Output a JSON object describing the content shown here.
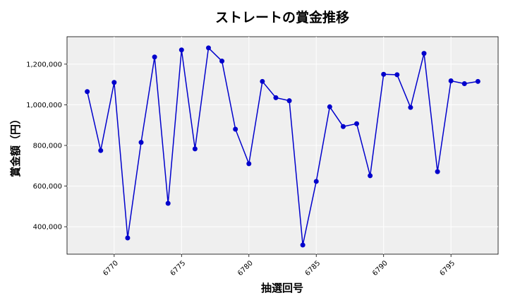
{
  "chart_data": {
    "type": "line",
    "title": "ストレートの賞金推移",
    "xlabel": "抽選回号",
    "ylabel": "賞金額（円）",
    "xlim": [
      6766.5,
      6798.5
    ],
    "ylim": [
      265000,
      1335000
    ],
    "x_ticks": [
      6770,
      6775,
      6780,
      6785,
      6790,
      6795
    ],
    "y_ticks": [
      400000,
      600000,
      800000,
      1000000,
      1200000
    ],
    "y_tick_labels": [
      "400,000",
      "600,000",
      "800,000",
      "1,000,000",
      "1,200,000"
    ],
    "grid": true,
    "colors": {
      "line": "#0000cc",
      "plot_bg": "#efefef",
      "grid": "#ffffff"
    },
    "series": [
      {
        "x": [
          6768,
          6769,
          6770,
          6771,
          6772,
          6773,
          6774,
          6775,
          6776,
          6777,
          6778,
          6779,
          6780,
          6781,
          6782,
          6783,
          6784,
          6785,
          6786,
          6787,
          6788,
          6789,
          6790,
          6791,
          6792,
          6793,
          6794,
          6795,
          6796,
          6797
        ],
        "values": [
          1065000,
          775000,
          1110000,
          345000,
          815000,
          1235000,
          515000,
          1270000,
          783000,
          1280000,
          1215000,
          880000,
          710000,
          1115000,
          1035000,
          1020000,
          310000,
          623000,
          990000,
          893000,
          907000,
          651000,
          1150000,
          1148000,
          987000,
          1253000,
          671000,
          1118000,
          1104000,
          1115000
        ]
      }
    ]
  }
}
